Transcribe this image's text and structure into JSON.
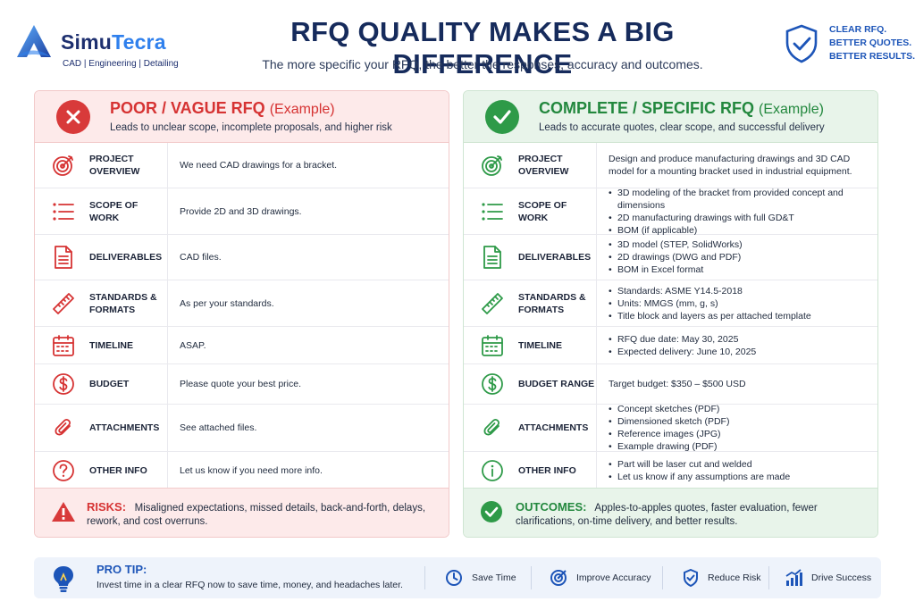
{
  "brand": {
    "name_part1": "Simu",
    "name_part2": "Tecra",
    "tagline": "CAD | Engineering | Detailing"
  },
  "header": {
    "title": "RFQ QUALITY MAKES A BIG DIFFERENCE",
    "subtitle": "The more specific your RFQ, the better the responses, accuracy and outcomes."
  },
  "badge": {
    "line1": "CLEAR RFQ.",
    "line2": "BETTER QUOTES.",
    "line3": "BETTER RESULTS."
  },
  "poor": {
    "title": "POOR / VAGUE RFQ",
    "title_suffix": "(Example)",
    "subtitle": "Leads to unclear scope, incomplete proposals, and higher risk",
    "rows": [
      {
        "label": "PROJECT OVERVIEW",
        "icon": "target-icon",
        "value": "We need CAD drawings for a bracket."
      },
      {
        "label": "SCOPE OF WORK",
        "icon": "list-icon",
        "value": "Provide 2D and 3D drawings."
      },
      {
        "label": "DELIVERABLES",
        "icon": "document-icon",
        "value": "CAD files."
      },
      {
        "label": "STANDARDS & FORMATS",
        "icon": "ruler-icon",
        "value": "As per your standards."
      },
      {
        "label": "TIMELINE",
        "icon": "calendar-icon",
        "value": "ASAP."
      },
      {
        "label": "BUDGET",
        "icon": "dollar-icon",
        "value": "Please quote your best price."
      },
      {
        "label": "ATTACHMENTS",
        "icon": "paperclip-icon",
        "value": "See attached files."
      },
      {
        "label": "OTHER INFO",
        "icon": "question-icon",
        "value": "Let us know if you need more info."
      }
    ],
    "footer_key": "RISKS:",
    "footer_text": "Misaligned expectations, missed details, back-and-forth, delays, rework, and cost overruns."
  },
  "good": {
    "title": "COMPLETE / SPECIFIC RFQ",
    "title_suffix": "(Example)",
    "subtitle": "Leads to accurate quotes, clear scope, and successful delivery",
    "rows": [
      {
        "label": "PROJECT OVERVIEW",
        "icon": "target-icon",
        "value": "Design and produce manufacturing drawings and 3D CAD model for a mounting bracket used in industrial equipment."
      },
      {
        "label": "SCOPE OF WORK",
        "icon": "list-icon",
        "items": [
          "3D modeling of the bracket from provided concept and dimensions",
          "2D manufacturing drawings with full GD&T",
          "BOM (if applicable)"
        ]
      },
      {
        "label": "DELIVERABLES",
        "icon": "document-icon",
        "items": [
          "3D model (STEP, SolidWorks)",
          "2D drawings (DWG and PDF)",
          "BOM in Excel format"
        ]
      },
      {
        "label": "STANDARDS & FORMATS",
        "icon": "ruler-icon",
        "items": [
          "Standards: ASME Y14.5-2018",
          "Units: MMGS (mm, g, s)",
          "Title block and layers as per attached template"
        ]
      },
      {
        "label": "TIMELINE",
        "icon": "calendar-icon",
        "items": [
          "RFQ due date: May 30, 2025",
          "Expected delivery: June 10, 2025"
        ]
      },
      {
        "label": "BUDGET RANGE",
        "icon": "dollar-icon",
        "value": "Target budget: $350 – $500 USD"
      },
      {
        "label": "ATTACHMENTS",
        "icon": "paperclip-icon",
        "items": [
          "Concept sketches (PDF)",
          "Dimensioned sketch (PDF)",
          "Reference images (JPG)",
          "Example drawing (PDF)"
        ]
      },
      {
        "label": "OTHER INFO",
        "icon": "info-icon",
        "items": [
          "Part will be laser cut and welded",
          "Let us know if any assumptions are made"
        ]
      }
    ],
    "footer_key": "OUTCOMES:",
    "footer_text": "Apples-to-apples quotes, faster evaluation, fewer clarifications, on-time delivery, and better results."
  },
  "tip": {
    "title": "PRO TIP:",
    "text": "Invest time in a clear RFQ now to save time, money, and headaches later.",
    "items": [
      "Save Time",
      "Improve Accuracy",
      "Reduce Risk",
      "Drive Success"
    ]
  },
  "colors": {
    "navy": "#162b5c",
    "accent_blue": "#1d55b8",
    "poor_red": "#d63333",
    "good_green": "#23883e"
  }
}
